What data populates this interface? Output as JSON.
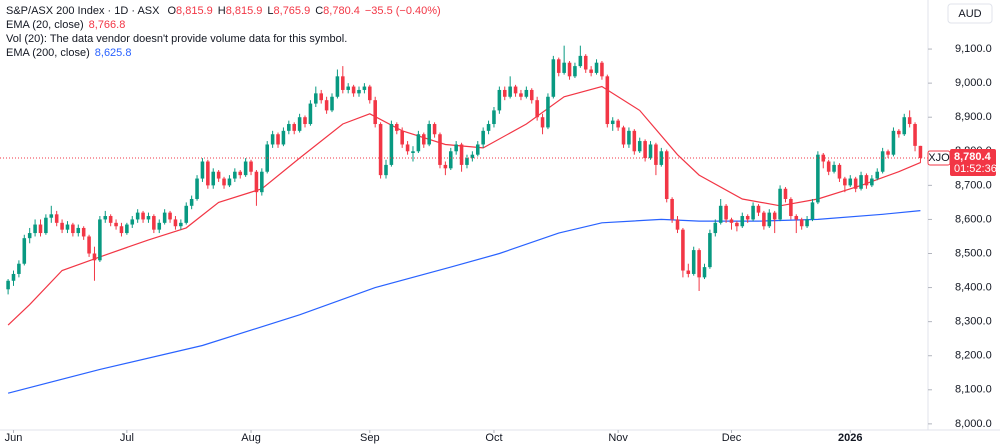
{
  "chart_data": {
    "type": "candlestick",
    "title": "S&P/ASX 200 Index · 1D · ASX",
    "quote": [
      {
        "key": "O",
        "value": "8,815.9"
      },
      {
        "key": "H",
        "value": "8,815.9"
      },
      {
        "key": "L",
        "value": "8,765.9"
      },
      {
        "key": "C",
        "value": "8,780.4"
      }
    ],
    "change": "−35.5 (−0.40%)",
    "currency": "AUD",
    "note": "Vol (20): The data vendor doesn't provide volume data for this symbol.",
    "up_color": "#089981",
    "down_color": "#f23645",
    "grid": false,
    "ylim": [
      7982,
      9244
    ],
    "yticks": [
      {
        "value": 8000,
        "label": "8,000.0"
      },
      {
        "value": 8100,
        "label": "8,100.0"
      },
      {
        "value": 8200,
        "label": "8,200.0"
      },
      {
        "value": 8300,
        "label": "8,300.0"
      },
      {
        "value": 8400,
        "label": "8,400.0"
      },
      {
        "value": 8500,
        "label": "8,500.0"
      },
      {
        "value": 8600,
        "label": "8,600.0"
      },
      {
        "value": 8700,
        "label": "8,700.0"
      },
      {
        "value": 8800,
        "label": "8,800.0"
      },
      {
        "value": 8900,
        "label": "8,900.0"
      },
      {
        "value": 9000,
        "label": "9,000.0"
      },
      {
        "value": 9100,
        "label": "9,100.0"
      }
    ],
    "xlim": [
      -1.5,
      170.4
    ],
    "xticks": [
      {
        "value": 1,
        "label": "Jun"
      },
      {
        "value": 22,
        "label": "Jul"
      },
      {
        "value": 45,
        "label": "Aug"
      },
      {
        "value": 67,
        "label": "Sep"
      },
      {
        "value": 90,
        "label": "Oct"
      },
      {
        "value": 113,
        "label": "Nov"
      },
      {
        "value": 134,
        "label": "Dec"
      },
      {
        "value": 156,
        "label": "2026"
      }
    ],
    "ohlc": [
      [
        8395,
        8425,
        8380,
        8420
      ],
      [
        8420,
        8450,
        8405,
        8440
      ],
      [
        8440,
        8480,
        8430,
        8470
      ],
      [
        8470,
        8555,
        8465,
        8545
      ],
      [
        8545,
        8575,
        8530,
        8560
      ],
      [
        8560,
        8600,
        8550,
        8585
      ],
      [
        8585,
        8600,
        8550,
        8560
      ],
      [
        8560,
        8615,
        8555,
        8605
      ],
      [
        8605,
        8640,
        8590,
        8615
      ],
      [
        8615,
        8625,
        8580,
        8590
      ],
      [
        8590,
        8600,
        8560,
        8570
      ],
      [
        8570,
        8595,
        8560,
        8585
      ],
      [
        8585,
        8590,
        8550,
        8560
      ],
      [
        8560,
        8585,
        8550,
        8575
      ],
      [
        8575,
        8580,
        8540,
        8550
      ],
      [
        8550,
        8555,
        8490,
        8500
      ],
      [
        8500,
        8520,
        8420,
        8480
      ],
      [
        8480,
        8610,
        8475,
        8600
      ],
      [
        8600,
        8625,
        8590,
        8610
      ],
      [
        8610,
        8615,
        8580,
        8590
      ],
      [
        8590,
        8600,
        8570,
        8580
      ],
      [
        8580,
        8590,
        8550,
        8560
      ],
      [
        8560,
        8590,
        8555,
        8585
      ],
      [
        8585,
        8610,
        8575,
        8600
      ],
      [
        8600,
        8630,
        8590,
        8620
      ],
      [
        8620,
        8625,
        8590,
        8600
      ],
      [
        8600,
        8620,
        8590,
        8610
      ],
      [
        8610,
        8615,
        8560,
        8570
      ],
      [
        8570,
        8600,
        8560,
        8590
      ],
      [
        8590,
        8630,
        8585,
        8620
      ],
      [
        8620,
        8625,
        8590,
        8600
      ],
      [
        8600,
        8610,
        8570,
        8580
      ],
      [
        8580,
        8600,
        8570,
        8590
      ],
      [
        8590,
        8650,
        8585,
        8640
      ],
      [
        8640,
        8670,
        8630,
        8660
      ],
      [
        8660,
        8730,
        8655,
        8720
      ],
      [
        8720,
        8780,
        8710,
        8770
      ],
      [
        8770,
        8775,
        8690,
        8700
      ],
      [
        8700,
        8750,
        8690,
        8740
      ],
      [
        8740,
        8745,
        8710,
        8720
      ],
      [
        8720,
        8725,
        8690,
        8700
      ],
      [
        8700,
        8730,
        8695,
        8720
      ],
      [
        8720,
        8750,
        8710,
        8740
      ],
      [
        8740,
        8745,
        8720,
        8730
      ],
      [
        8730,
        8780,
        8725,
        8770
      ],
      [
        8770,
        8775,
        8730,
        8740
      ],
      [
        8740,
        8745,
        8640,
        8680
      ],
      [
        8680,
        8750,
        8670,
        8740
      ],
      [
        8740,
        8830,
        8735,
        8820
      ],
      [
        8820,
        8860,
        8810,
        8850
      ],
      [
        8850,
        8855,
        8810,
        8820
      ],
      [
        8820,
        8870,
        8815,
        8860
      ],
      [
        8860,
        8890,
        8850,
        8880
      ],
      [
        8880,
        8885,
        8850,
        8860
      ],
      [
        8860,
        8910,
        8855,
        8900
      ],
      [
        8900,
        8905,
        8870,
        8880
      ],
      [
        8880,
        8950,
        8875,
        8940
      ],
      [
        8940,
        8990,
        8930,
        8970
      ],
      [
        8970,
        8980,
        8940,
        8950
      ],
      [
        8950,
        8960,
        8910,
        8920
      ],
      [
        8920,
        8970,
        8915,
        8960
      ],
      [
        8960,
        9040,
        8955,
        9020
      ],
      [
        9020,
        9050,
        8970,
        8980
      ],
      [
        8980,
        9000,
        8970,
        8990
      ],
      [
        8990,
        8995,
        8960,
        8970
      ],
      [
        8970,
        8990,
        8960,
        8980
      ],
      [
        8980,
        9000,
        8970,
        8990
      ],
      [
        8990,
        8995,
        8940,
        8950
      ],
      [
        8950,
        8960,
        8870,
        8880
      ],
      [
        8880,
        8885,
        8720,
        8730
      ],
      [
        8730,
        8775,
        8720,
        8760
      ],
      [
        8760,
        8890,
        8755,
        8880
      ],
      [
        8880,
        8885,
        8850,
        8860
      ],
      [
        8860,
        8870,
        8810,
        8820
      ],
      [
        8820,
        8830,
        8790,
        8800
      ],
      [
        8795,
        8815,
        8770,
        8800
      ],
      [
        8800,
        8860,
        8795,
        8850
      ],
      [
        8850,
        8855,
        8810,
        8820
      ],
      [
        8820,
        8890,
        8815,
        8880
      ],
      [
        8880,
        8885,
        8840,
        8850
      ],
      [
        8850,
        8855,
        8750,
        8760
      ],
      [
        8760,
        8770,
        8730,
        8750
      ],
      [
        8750,
        8810,
        8745,
        8800
      ],
      [
        8800,
        8830,
        8790,
        8820
      ],
      [
        8820,
        8825,
        8740,
        8760
      ],
      [
        8760,
        8790,
        8750,
        8780
      ],
      [
        8780,
        8800,
        8770,
        8790
      ],
      [
        8790,
        8830,
        8785,
        8820
      ],
      [
        8820,
        8870,
        8810,
        8860
      ],
      [
        8860,
        8890,
        8850,
        8880
      ],
      [
        8880,
        8930,
        8870,
        8920
      ],
      [
        8920,
        8990,
        8910,
        8980
      ],
      [
        8980,
        8990,
        8950,
        8960
      ],
      [
        8960,
        9020,
        8955,
        8990
      ],
      [
        8990,
        8995,
        8960,
        8970
      ],
      [
        8970,
        8980,
        8950,
        8960
      ],
      [
        8960,
        8990,
        8955,
        8980
      ],
      [
        8980,
        8985,
        8940,
        8950
      ],
      [
        8950,
        8960,
        8890,
        8900
      ],
      [
        8900,
        8910,
        8850,
        8870
      ],
      [
        8870,
        8970,
        8865,
        8960
      ],
      [
        8960,
        9080,
        8955,
        9070
      ],
      [
        9070,
        9075,
        9020,
        9030
      ],
      [
        9030,
        9110,
        9025,
        9060
      ],
      [
        9060,
        9065,
        9010,
        9020
      ],
      [
        9020,
        9060,
        9015,
        9050
      ],
      [
        9050,
        9110,
        9045,
        9080
      ],
      [
        9080,
        9085,
        9030,
        9040
      ],
      [
        9040,
        9050,
        9020,
        9030
      ],
      [
        9030,
        9070,
        9025,
        9060
      ],
      [
        9060,
        9065,
        9010,
        9020
      ],
      [
        9020,
        9025,
        8870,
        8880
      ],
      [
        8880,
        8900,
        8860,
        8890
      ],
      [
        8890,
        8895,
        8860,
        8870
      ],
      [
        8870,
        8875,
        8810,
        8820
      ],
      [
        8820,
        8870,
        8810,
        8860
      ],
      [
        8860,
        8865,
        8790,
        8800
      ],
      [
        8800,
        8840,
        8795,
        8830
      ],
      [
        8830,
        8835,
        8770,
        8780
      ],
      [
        8780,
        8830,
        8775,
        8820
      ],
      [
        8820,
        8825,
        8730,
        8760
      ],
      [
        8760,
        8810,
        8755,
        8800
      ],
      [
        8800,
        8805,
        8650,
        8660
      ],
      [
        8660,
        8665,
        8590,
        8600
      ],
      [
        8600,
        8610,
        8560,
        8570
      ],
      [
        8570,
        8575,
        8430,
        8450
      ],
      [
        8450,
        8470,
        8430,
        8440
      ],
      [
        8440,
        8520,
        8435,
        8510
      ],
      [
        8510,
        8515,
        8390,
        8430
      ],
      [
        8430,
        8470,
        8425,
        8460
      ],
      [
        8460,
        8570,
        8455,
        8560
      ],
      [
        8560,
        8600,
        8550,
        8590
      ],
      [
        8590,
        8660,
        8585,
        8640
      ],
      [
        8640,
        8645,
        8590,
        8600
      ],
      [
        8600,
        8605,
        8570,
        8590
      ],
      [
        8590,
        8595,
        8565,
        8580
      ],
      [
        8580,
        8620,
        8575,
        8610
      ],
      [
        8610,
        8615,
        8590,
        8600
      ],
      [
        8600,
        8650,
        8595,
        8640
      ],
      [
        8640,
        8645,
        8610,
        8620
      ],
      [
        8620,
        8625,
        8570,
        8580
      ],
      [
        8580,
        8630,
        8575,
        8620
      ],
      [
        8620,
        8625,
        8560,
        8600
      ],
      [
        8600,
        8700,
        8595,
        8690
      ],
      [
        8690,
        8695,
        8650,
        8660
      ],
      [
        8660,
        8665,
        8600,
        8610
      ],
      [
        8610,
        8615,
        8560,
        8600
      ],
      [
        8600,
        8605,
        8570,
        8580
      ],
      [
        8580,
        8610,
        8575,
        8600
      ],
      [
        8600,
        8660,
        8595,
        8650
      ],
      [
        8650,
        8800,
        8645,
        8790
      ],
      [
        8790,
        8795,
        8750,
        8770
      ],
      [
        8770,
        8775,
        8730,
        8740
      ],
      [
        8740,
        8770,
        8735,
        8760
      ],
      [
        8760,
        8765,
        8710,
        8720
      ],
      [
        8720,
        8725,
        8680,
        8700
      ],
      [
        8700,
        8730,
        8695,
        8720
      ],
      [
        8720,
        8725,
        8680,
        8690
      ],
      [
        8690,
        8740,
        8685,
        8730
      ],
      [
        8730,
        8735,
        8690,
        8700
      ],
      [
        8700,
        8730,
        8695,
        8720
      ],
      [
        8720,
        8750,
        8715,
        8740
      ],
      [
        8740,
        8810,
        8735,
        8800
      ],
      [
        8800,
        8805,
        8780,
        8790
      ],
      [
        8790,
        8870,
        8785,
        8860
      ],
      [
        8860,
        8865,
        8840,
        8850
      ],
      [
        8850,
        8910,
        8845,
        8900
      ],
      [
        8900,
        8920,
        8870,
        8880
      ],
      [
        8880,
        8885,
        8800,
        8815.9
      ],
      [
        8815.9,
        8815.9,
        8765.9,
        8780.4
      ]
    ],
    "indicators": [
      {
        "name": "EMA (20, close)",
        "value_label": "8,766.8",
        "color": "#f23645",
        "x": [
          0,
          4,
          10,
          17,
          26,
          33,
          39,
          47,
          54,
          62,
          67,
          73,
          81,
          88,
          96,
          103,
          110,
          117,
          124,
          128,
          136,
          143,
          150,
          158,
          165,
          169
        ],
        "values": [
          8290,
          8350,
          8450,
          8490,
          8540,
          8575,
          8650,
          8690,
          8780,
          8880,
          8910,
          8860,
          8820,
          8810,
          8880,
          8960,
          8990,
          8920,
          8790,
          8730,
          8660,
          8640,
          8660,
          8700,
          8740,
          8766.8
        ]
      },
      {
        "name": "EMA (200, close)",
        "value_label": "8,625.8",
        "color": "#2962ff",
        "x": [
          0,
          17,
          36,
          54,
          68,
          82,
          91,
          102,
          110,
          121,
          128,
          139,
          150,
          162,
          169
        ],
        "values": [
          8090,
          8160,
          8230,
          8320,
          8400,
          8460,
          8500,
          8560,
          8590,
          8600,
          8595,
          8595,
          8600,
          8615,
          8625.8
        ]
      }
    ],
    "last_price": {
      "symbol": "XJO",
      "label": "8,780.4",
      "countdown": "01:52:36"
    }
  }
}
